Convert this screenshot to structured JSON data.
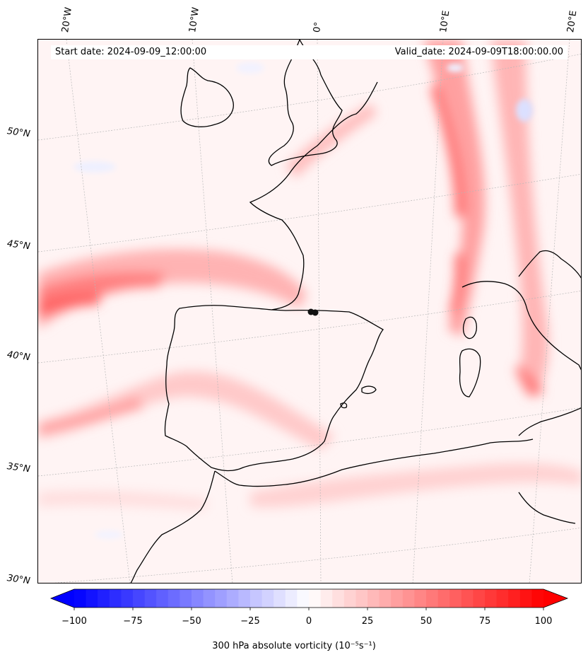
{
  "header": {
    "start_date": "Start date: 2024-09-09_12:00:00",
    "valid_date": "Valid_date: 2024-09-09T18:00:00.00"
  },
  "axes": {
    "lat_labels": [
      "50°N",
      "45°N",
      "40°N",
      "35°N",
      "30°N"
    ],
    "lon_labels": [
      "20°W",
      "10°W",
      "0°",
      "10°E",
      "20°E"
    ]
  },
  "colorbar": {
    "title": "300 hPa absolute vorticity (10⁻⁵s⁻¹)",
    "ticks": [
      "−100",
      "−75",
      "−50",
      "−25",
      "0",
      "25",
      "50",
      "75",
      "100"
    ],
    "min": -100,
    "max": 100,
    "colors": {
      "negative": "#0000ff",
      "zero": "#ffffff",
      "positive": "#ff0000"
    }
  },
  "map": {
    "field": "300 hPa absolute vorticity",
    "region": "Western Europe and Western Mediterranean",
    "coastline_color": "#000000",
    "gridline_color": "#b0b0b0",
    "marker": "black dot near 42°N, 0°"
  }
}
